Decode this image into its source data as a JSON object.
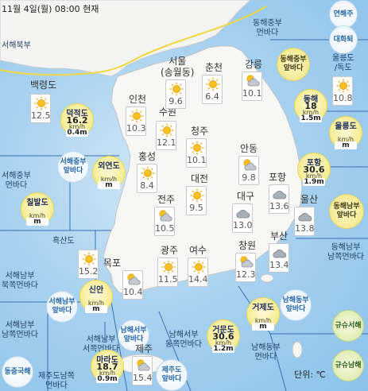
{
  "header": {
    "title": "11월 4일(월) 08:00 현재"
  },
  "unit_label": "단위: ℃",
  "sea_areas": [
    {
      "id": "sea-서해북부",
      "label": "서해북부"
    },
    {
      "id": "sea-동해중부먼바다",
      "label": "동해중부\n먼바다"
    },
    {
      "id": "sea-울릉도독도",
      "label": "울릉도\n/독도"
    },
    {
      "id": "sea-서해중부먼바다",
      "label": "서해중부\n먼바다"
    },
    {
      "id": "sea-흑산도",
      "label": "흑산도"
    },
    {
      "id": "sea-서해남부북쪽먼바다",
      "label": "서해남부\n북쪽먼바다"
    },
    {
      "id": "sea-동해남부남쪽먼바다",
      "label": "동해남부\n남쪽먼바다"
    },
    {
      "id": "sea-서해남부남쪽먼바다",
      "label": "서해남부\n남쪽먼바다"
    },
    {
      "id": "sea-서해남부서쪽먼바다",
      "label": "서해남부\n서쪽먼바다"
    },
    {
      "id": "sea-남해서부동쪽먼바다",
      "label": "남해서부\n동쪽먼바다"
    },
    {
      "id": "sea-남해동부먼바다",
      "label": "남해동부\n먼바다"
    },
    {
      "id": "sea-제주도남쪽먼바다",
      "label": "제주도남쪽\n먼바다"
    }
  ],
  "badges": [
    {
      "id": "badge-연해주",
      "label": "연해주",
      "style": "b-w"
    },
    {
      "id": "badge-대화퇴",
      "label": "대화퇴",
      "style": "b-w"
    },
    {
      "id": "badge-동해중부앞바다",
      "label": "동해중부\n앞바다",
      "style": "b-y"
    },
    {
      "id": "badge-서해중부앞바다",
      "label": "서해중부\n앞바다",
      "style": "b-w"
    },
    {
      "id": "badge-동해남부앞바다",
      "label": "동해남부\n앞바다",
      "style": "b-y"
    },
    {
      "id": "badge-서해남부앞바다",
      "label": "서해남부\n앞바다",
      "style": "b-w"
    },
    {
      "id": "badge-남해동부앞바다",
      "label": "남해동부\n앞바다",
      "style": "b-w"
    },
    {
      "id": "badge-남해서부앞바다",
      "label": "남해서부\n앞바다",
      "style": "b-w"
    },
    {
      "id": "badge-동중국해",
      "label": "동중국해",
      "style": "b-w"
    },
    {
      "id": "badge-제주도앞바다",
      "label": "제주도\n앞바다",
      "style": "b-w"
    },
    {
      "id": "badge-규슈서해",
      "label": "규슈서해",
      "style": "b-g"
    },
    {
      "id": "badge-규슈남해",
      "label": "규슈남해",
      "style": "b-g"
    }
  ],
  "cities": [
    {
      "id": "seoul",
      "name": "서울\n(송월동)",
      "temp": "9.6",
      "icon": "sunny"
    },
    {
      "id": "chuncheon",
      "name": "춘천",
      "temp": "6.4",
      "icon": "sunny"
    },
    {
      "id": "gangneung",
      "name": "강릉",
      "temp": "10.1",
      "icon": "partly-cloudy"
    },
    {
      "id": "baengnyeongdo",
      "name": "백령도",
      "temp": "12.5",
      "icon": "sunny"
    },
    {
      "id": "incheon",
      "name": "인천",
      "temp": "10.3",
      "icon": "sunny"
    },
    {
      "id": "suwon",
      "name": "수원",
      "temp": "12.1",
      "icon": "sunny"
    },
    {
      "id": "cheongju",
      "name": "청주",
      "temp": "10.1",
      "icon": "sunny"
    },
    {
      "id": "ulleungdo",
      "name": "",
      "temp": "10.8",
      "icon": "sunny"
    },
    {
      "id": "hongseong",
      "name": "홍성",
      "temp": "8.4",
      "icon": "sunny"
    },
    {
      "id": "andong",
      "name": "안동",
      "temp": "9.8",
      "icon": "partly-cloudy"
    },
    {
      "id": "daejeon",
      "name": "대전",
      "temp": "9.5",
      "icon": "sunny"
    },
    {
      "id": "jeonju",
      "name": "전주",
      "temp": "10.5",
      "icon": "partly-cloudy"
    },
    {
      "id": "daegu",
      "name": "대구",
      "temp": "13.0",
      "icon": "cloudy"
    },
    {
      "id": "pohang",
      "name": "포항",
      "temp": "13.6",
      "icon": "cloudy"
    },
    {
      "id": "ulsan",
      "name": "울산",
      "temp": "13.8",
      "icon": "cloudy"
    },
    {
      "id": "heuksando",
      "name": "",
      "temp": "15.2",
      "icon": "sunny"
    },
    {
      "id": "mokpo",
      "name": "목포",
      "temp": "10.4",
      "icon": "partly-cloudy"
    },
    {
      "id": "gwangju",
      "name": "광주",
      "temp": "11.5",
      "icon": "sunny"
    },
    {
      "id": "yeosu",
      "name": "여수",
      "temp": "14.4",
      "icon": "sunny"
    },
    {
      "id": "changwon",
      "name": "창원",
      "temp": "12.3",
      "icon": "partly-cloudy"
    },
    {
      "id": "busan",
      "name": "부산",
      "temp": "13.4",
      "icon": "cloudy"
    },
    {
      "id": "jeju",
      "name": "제주",
      "temp": "15.4",
      "icon": "partly-cloudy"
    }
  ],
  "wave_stations": [
    {
      "id": "deokjeokdo",
      "name": "덕적도",
      "speed": "16.2",
      "unit": "km/h",
      "height": "0.4m"
    },
    {
      "id": "oeyeondo",
      "name": "외연도",
      "speed": "",
      "unit": "km/h",
      "height": "m"
    },
    {
      "id": "chilbaldo",
      "name": "칠발도",
      "speed": "",
      "unit": "km/h",
      "height": "m"
    },
    {
      "id": "sinan",
      "name": "신안",
      "speed": "",
      "unit": "km/h",
      "height": "m"
    },
    {
      "id": "marado",
      "name": "마라도",
      "speed": "18.7",
      "unit": "km/h",
      "height": "0.9m"
    },
    {
      "id": "geomundo",
      "name": "거문도",
      "speed": "30.6",
      "unit": "km/h",
      "height": "1.2m"
    },
    {
      "id": "geojedo",
      "name": "거제도",
      "speed": "",
      "unit": "km/h",
      "height": "m"
    },
    {
      "id": "pohang-buoy",
      "name": "포항",
      "speed": "30.6",
      "unit": "km/h",
      "height": "1.9m"
    },
    {
      "id": "donghae",
      "name": "동해",
      "speed": "18",
      "unit": "km/h",
      "height": "1.5m"
    },
    {
      "id": "ulleungdo-buoy",
      "name": "울릉도",
      "speed": "",
      "unit": "km/h",
      "height": "m"
    }
  ]
}
